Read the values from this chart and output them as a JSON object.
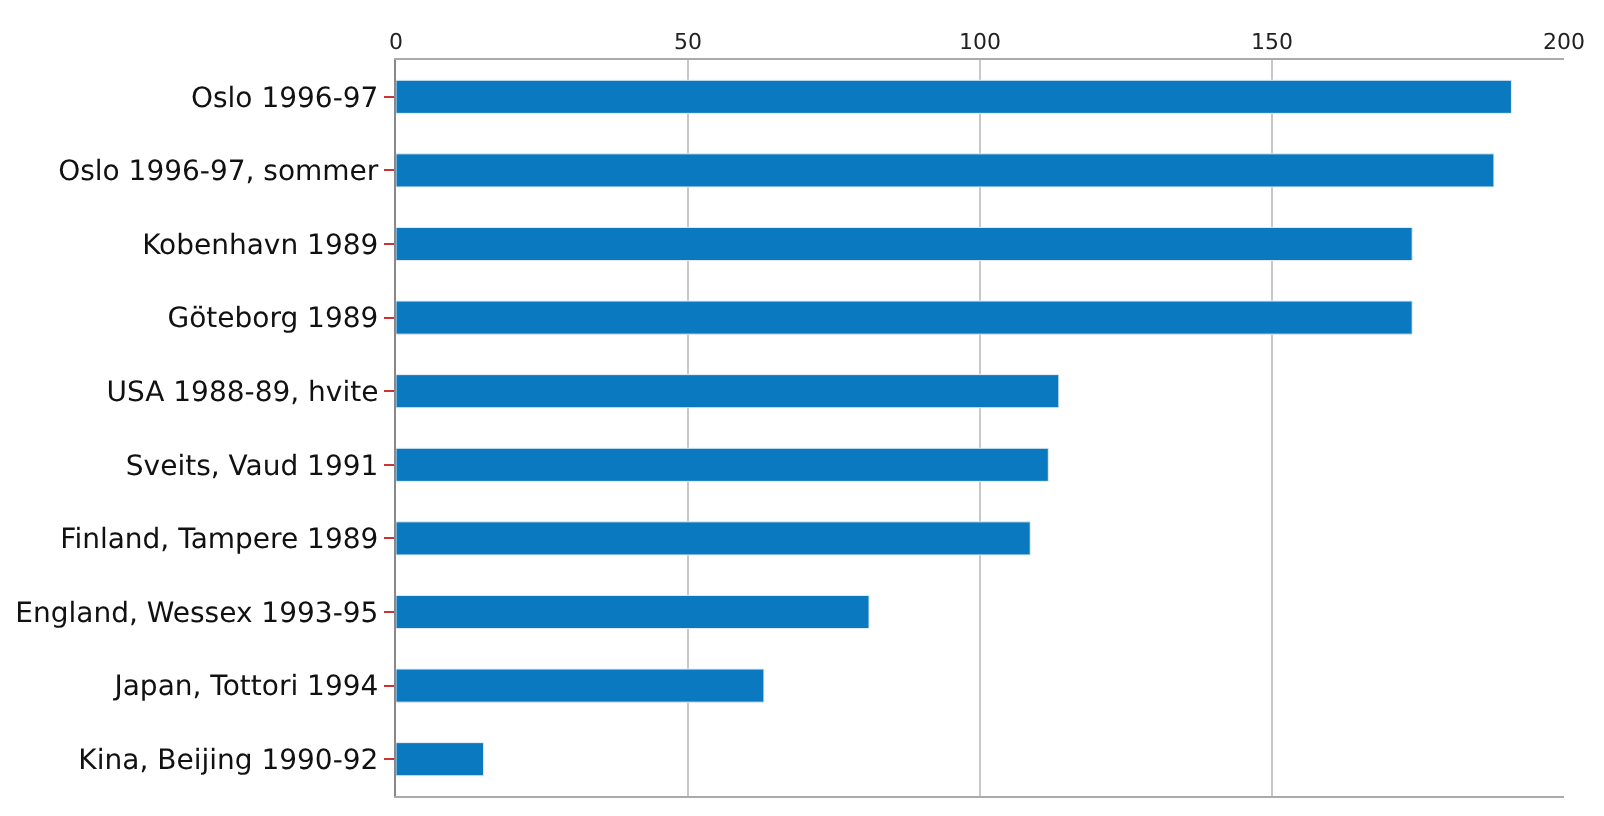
{
  "chart_data": {
    "type": "bar",
    "orientation": "horizontal",
    "categories": [
      "Oslo 1996-97",
      "Oslo 1996-97, sommer",
      "Kobenhavn 1989",
      "Göteborg 1989",
      "USA 1988-89, hvite",
      "Sveits, Vaud 1991",
      "Finland, Tampere 1989",
      "England, Wessex 1993-95",
      "Japan, Tottori 1994",
      "Kina, Beijing 1990-92"
    ],
    "values": [
      191,
      188,
      174,
      174,
      113.5,
      111.7,
      108.6,
      81,
      63,
      15
    ],
    "color": "#0a79bf",
    "xlim": [
      0,
      200
    ],
    "xticks": [
      0,
      50,
      100,
      150,
      200
    ],
    "grid": "x"
  }
}
